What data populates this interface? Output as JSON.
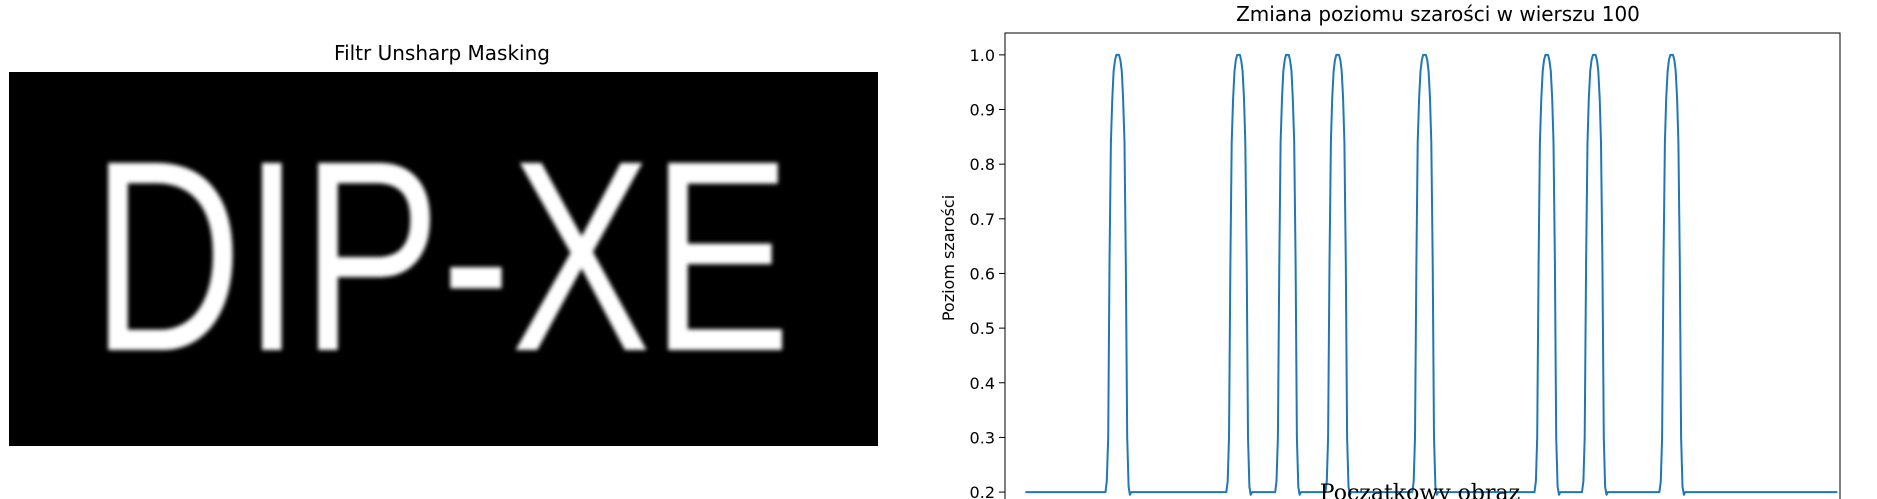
{
  "left_panel": {
    "title": "Filtr Unsharp Masking",
    "image_text": "DIP-XE"
  },
  "bleed_text": "Początkowy obraz",
  "chart_data": {
    "type": "line",
    "title": "Zmiana poziomu szarości w wierszu 100",
    "xlabel": "",
    "ylabel": "Poziom szarości",
    "ylim": [
      0.18,
      1.04
    ],
    "xlim": [
      -15,
      600
    ],
    "yticks": [
      "0.2",
      "0.3",
      "0.4",
      "0.5",
      "0.6",
      "0.7",
      "0.8",
      "0.9",
      "1.0"
    ],
    "ytick_values": [
      0.2,
      0.3,
      0.4,
      0.5,
      0.6,
      0.7,
      0.8,
      0.9,
      1.0
    ],
    "xtick_values": [
      0,
      100,
      200,
      300,
      400,
      500,
      600
    ],
    "baseline": 0.2,
    "peak": 1.0,
    "peaks_x": [
      68,
      157,
      193,
      230,
      294,
      384,
      419,
      476
    ],
    "x_end": 598,
    "line_color": "#1f77b4",
    "grid": false
  },
  "colors": {
    "image_background": "#000000",
    "image_text": "#ffffff"
  }
}
